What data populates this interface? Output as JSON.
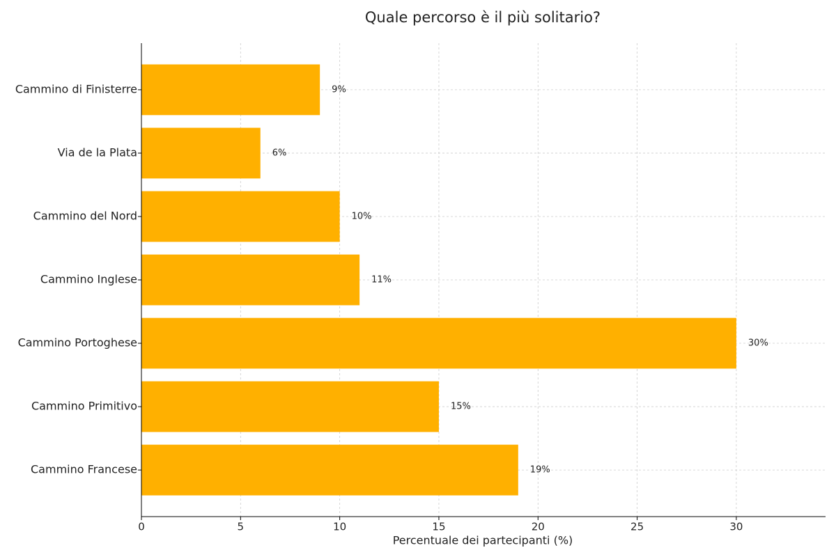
{
  "chart_data": {
    "type": "barh",
    "title": "Quale percorso è il più solitario?",
    "x_label": "Percentuale dei partecipanti (%)",
    "categories": [
      "Cammino Francese",
      "Cammino Primitivo",
      "Cammino Portoghese",
      "Cammino Inglese",
      "Cammino del Nord",
      "Via de la Plata",
      "Cammino di Finisterre"
    ],
    "values": [
      19,
      15,
      30,
      11,
      10,
      6,
      9
    ],
    "value_labels": [
      "19%",
      "15%",
      "30%",
      "11%",
      "10%",
      "6%",
      "9%"
    ],
    "color": "#ffb000",
    "xlim": [
      0,
      34.5
    ],
    "xticks": [
      0,
      5,
      10,
      15,
      20,
      25,
      30
    ],
    "grid": true
  }
}
